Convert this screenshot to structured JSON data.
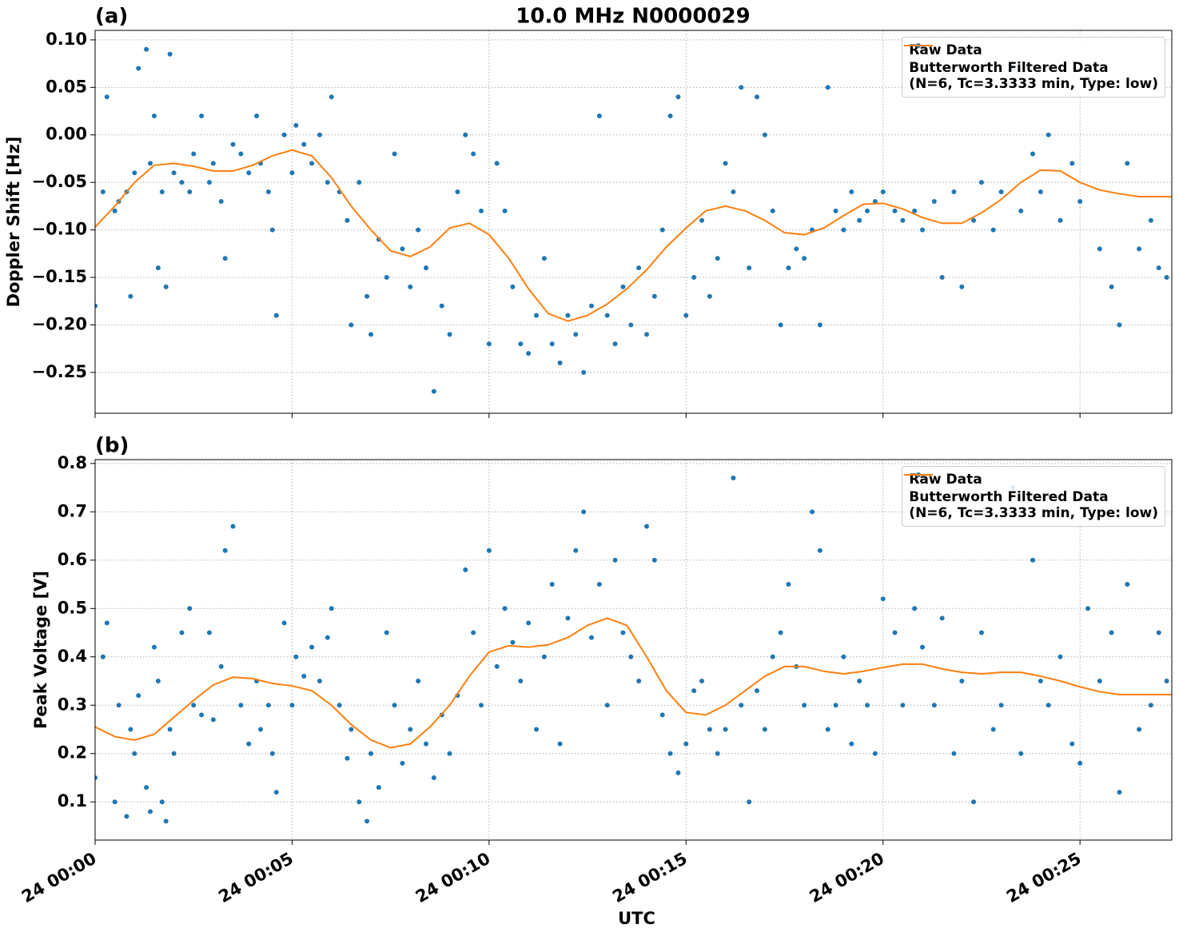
{
  "title": "10.0 MHz N0000029",
  "chart_data": [
    {
      "type": "scatter",
      "panel_label": "(a)",
      "ylabel": "Doppler Shift [Hz]",
      "xlim": [
        0,
        27.33
      ],
      "ylim": [
        -0.293,
        0.11
      ],
      "xticks": [
        0,
        5,
        10,
        15,
        20,
        25
      ],
      "show_xticklabels": false,
      "yticks": [
        {
          "value": 0.1,
          "label": "0.10"
        },
        {
          "value": 0.05,
          "label": "0.05"
        },
        {
          "value": 0,
          "label": "0.00"
        },
        {
          "value": -0.05,
          "label": "−0.05"
        },
        {
          "value": -0.1,
          "label": "−0.10"
        },
        {
          "value": -0.15,
          "label": "−0.15"
        },
        {
          "value": -0.2,
          "label": "−0.20"
        },
        {
          "value": -0.25,
          "label": "−0.25"
        }
      ],
      "grid": true,
      "legend": "upper right",
      "series": [
        {
          "name": "Raw Data",
          "type": "scatter",
          "color": "#1f77b4",
          "x": [
            0.0,
            0.2,
            0.3,
            0.5,
            0.6,
            0.8,
            0.9,
            1.0,
            1.1,
            1.3,
            1.4,
            1.5,
            1.6,
            1.7,
            1.8,
            1.9,
            2.0,
            2.2,
            2.4,
            2.5,
            2.7,
            2.9,
            3.0,
            3.2,
            3.3,
            3.5,
            3.7,
            3.9,
            4.1,
            4.2,
            4.4,
            4.5,
            4.6,
            4.8,
            5.0,
            5.1,
            5.3,
            5.5,
            5.7,
            5.9,
            6.0,
            6.2,
            6.4,
            6.5,
            6.7,
            6.9,
            7.0,
            7.2,
            7.4,
            7.6,
            7.8,
            8.0,
            8.2,
            8.4,
            8.6,
            8.8,
            9.0,
            9.2,
            9.4,
            9.6,
            9.8,
            10.0,
            10.2,
            10.4,
            10.6,
            10.8,
            11.0,
            11.2,
            11.4,
            11.6,
            11.8,
            12.0,
            12.2,
            12.4,
            12.6,
            12.8,
            13.0,
            13.2,
            13.4,
            13.6,
            13.8,
            14.0,
            14.2,
            14.4,
            14.6,
            14.8,
            15.0,
            15.2,
            15.4,
            15.6,
            15.8,
            16.0,
            16.2,
            16.4,
            16.6,
            16.8,
            17.0,
            17.2,
            17.4,
            17.6,
            17.8,
            18.0,
            18.2,
            18.4,
            18.6,
            18.8,
            19.0,
            19.2,
            19.4,
            19.6,
            19.8,
            20.0,
            20.3,
            20.5,
            20.8,
            21.0,
            21.3,
            21.5,
            21.8,
            22.0,
            22.3,
            22.5,
            22.8,
            23.0,
            23.3,
            23.5,
            23.8,
            24.0,
            24.2,
            24.5,
            24.8,
            25.0,
            25.2,
            25.5,
            25.8,
            26.0,
            26.2,
            26.5,
            26.8,
            27.0,
            27.2
          ],
          "values": [
            -0.18,
            -0.06,
            0.04,
            -0.08,
            -0.07,
            -0.06,
            -0.17,
            -0.04,
            0.07,
            0.09,
            -0.03,
            0.02,
            -0.14,
            -0.06,
            -0.16,
            0.085,
            -0.04,
            -0.05,
            -0.06,
            -0.02,
            0.02,
            -0.05,
            -0.03,
            -0.07,
            -0.13,
            -0.01,
            -0.02,
            -0.04,
            0.02,
            -0.03,
            -0.06,
            -0.1,
            -0.19,
            0.0,
            -0.04,
            0.01,
            -0.01,
            -0.03,
            0.0,
            -0.05,
            0.04,
            -0.06,
            -0.09,
            -0.2,
            -0.05,
            -0.17,
            -0.21,
            -0.11,
            -0.15,
            -0.02,
            -0.12,
            -0.16,
            -0.1,
            -0.14,
            -0.27,
            -0.18,
            -0.21,
            -0.06,
            0.0,
            -0.02,
            -0.08,
            -0.22,
            -0.03,
            -0.08,
            -0.16,
            -0.22,
            -0.23,
            -0.19,
            -0.13,
            -0.22,
            -0.24,
            -0.19,
            -0.21,
            -0.25,
            -0.18,
            0.02,
            -0.19,
            -0.22,
            -0.16,
            -0.2,
            -0.14,
            -0.21,
            -0.17,
            -0.1,
            0.02,
            0.04,
            -0.19,
            -0.15,
            -0.09,
            -0.17,
            -0.13,
            -0.03,
            -0.06,
            0.05,
            -0.14,
            0.04,
            0.0,
            -0.08,
            -0.2,
            -0.14,
            -0.12,
            -0.13,
            -0.1,
            -0.2,
            0.05,
            -0.08,
            -0.1,
            -0.06,
            -0.09,
            -0.08,
            -0.07,
            -0.06,
            -0.08,
            -0.09,
            -0.08,
            -0.1,
            -0.07,
            -0.15,
            -0.06,
            -0.16,
            -0.09,
            -0.05,
            -0.1,
            -0.06,
            0.07,
            -0.08,
            -0.02,
            -0.06,
            0.0,
            -0.09,
            -0.03,
            -0.07,
            0.06,
            -0.12,
            -0.16,
            -0.2,
            -0.03,
            -0.12,
            -0.09,
            -0.14,
            -0.15
          ]
        },
        {
          "name": "Butterworth Filtered Data\n(N=6, Tc=3.3333 min, Type: low)",
          "type": "line",
          "color": "#ff7f0e",
          "x": [
            0,
            0.5,
            1,
            1.5,
            2,
            2.5,
            3,
            3.5,
            4,
            4.5,
            5,
            5.5,
            6,
            6.5,
            7,
            7.5,
            8,
            8.5,
            9,
            9.5,
            10,
            10.5,
            11,
            11.5,
            12,
            12.5,
            13,
            13.5,
            14,
            14.5,
            15,
            15.5,
            16,
            16.5,
            17,
            17.5,
            18,
            18.5,
            19,
            19.5,
            20,
            20.5,
            21,
            21.5,
            22,
            22.5,
            23,
            23.5,
            24,
            24.5,
            25,
            25.5,
            26,
            26.5,
            27,
            27.33
          ],
          "values": [
            -0.097,
            -0.075,
            -0.05,
            -0.032,
            -0.03,
            -0.033,
            -0.038,
            -0.038,
            -0.032,
            -0.022,
            -0.016,
            -0.022,
            -0.045,
            -0.075,
            -0.1,
            -0.122,
            -0.128,
            -0.118,
            -0.098,
            -0.093,
            -0.105,
            -0.13,
            -0.162,
            -0.188,
            -0.196,
            -0.19,
            -0.178,
            -0.162,
            -0.142,
            -0.118,
            -0.098,
            -0.08,
            -0.075,
            -0.08,
            -0.09,
            -0.103,
            -0.105,
            -0.098,
            -0.085,
            -0.073,
            -0.072,
            -0.078,
            -0.087,
            -0.093,
            -0.093,
            -0.082,
            -0.068,
            -0.05,
            -0.037,
            -0.038,
            -0.05,
            -0.058,
            -0.062,
            -0.065,
            -0.065,
            -0.065
          ]
        }
      ]
    },
    {
      "type": "scatter",
      "panel_label": "(b)",
      "ylabel": "Peak Voltage [V]",
      "xlabel": "UTC",
      "xlim": [
        0,
        27.33
      ],
      "ylim": [
        0.021,
        0.808
      ],
      "xticks": [
        {
          "value": 0,
          "label": "24 00:00"
        },
        {
          "value": 5,
          "label": "24 00:05"
        },
        {
          "value": 10,
          "label": "24 00:10"
        },
        {
          "value": 15,
          "label": "24 00:15"
        },
        {
          "value": 20,
          "label": "24 00:20"
        },
        {
          "value": 25,
          "label": "24 00:25"
        }
      ],
      "yticks": [
        0.1,
        0.2,
        0.3,
        0.4,
        0.5,
        0.6,
        0.7,
        0.8
      ],
      "grid": true,
      "legend": "upper right",
      "series": [
        {
          "name": "Raw Data",
          "type": "scatter",
          "color": "#1f77b4",
          "x": [
            0.0,
            0.2,
            0.3,
            0.5,
            0.6,
            0.8,
            0.9,
            1.0,
            1.1,
            1.3,
            1.4,
            1.5,
            1.6,
            1.7,
            1.8,
            1.9,
            2.0,
            2.2,
            2.4,
            2.5,
            2.7,
            2.9,
            3.0,
            3.2,
            3.3,
            3.5,
            3.7,
            3.9,
            4.1,
            4.2,
            4.4,
            4.5,
            4.6,
            4.8,
            5.0,
            5.1,
            5.3,
            5.5,
            5.7,
            5.9,
            6.0,
            6.2,
            6.4,
            6.5,
            6.7,
            6.9,
            7.0,
            7.2,
            7.4,
            7.6,
            7.8,
            8.0,
            8.2,
            8.4,
            8.6,
            8.8,
            9.0,
            9.2,
            9.4,
            9.6,
            9.8,
            10.0,
            10.2,
            10.4,
            10.6,
            10.8,
            11.0,
            11.2,
            11.4,
            11.6,
            11.8,
            12.0,
            12.2,
            12.4,
            12.6,
            12.8,
            13.0,
            13.2,
            13.4,
            13.6,
            13.8,
            14.0,
            14.2,
            14.4,
            14.6,
            14.8,
            15.0,
            15.2,
            15.4,
            15.6,
            15.8,
            16.0,
            16.2,
            16.4,
            16.6,
            16.8,
            17.0,
            17.2,
            17.4,
            17.6,
            17.8,
            18.0,
            18.2,
            18.4,
            18.6,
            18.8,
            19.0,
            19.2,
            19.4,
            19.6,
            19.8,
            20.0,
            20.3,
            20.5,
            20.8,
            21.0,
            21.3,
            21.5,
            21.8,
            22.0,
            22.3,
            22.5,
            22.8,
            23.0,
            23.3,
            23.5,
            23.8,
            24.0,
            24.2,
            24.5,
            24.8,
            25.0,
            25.2,
            25.5,
            25.8,
            26.0,
            26.2,
            26.5,
            26.8,
            27.0,
            27.2
          ],
          "values": [
            0.15,
            0.4,
            0.47,
            0.1,
            0.3,
            0.07,
            0.25,
            0.2,
            0.32,
            0.13,
            0.08,
            0.42,
            0.35,
            0.1,
            0.06,
            0.25,
            0.2,
            0.45,
            0.5,
            0.3,
            0.28,
            0.45,
            0.27,
            0.38,
            0.62,
            0.67,
            0.3,
            0.22,
            0.35,
            0.25,
            0.3,
            0.2,
            0.12,
            0.47,
            0.3,
            0.4,
            0.36,
            0.42,
            0.35,
            0.44,
            0.5,
            0.3,
            0.19,
            0.25,
            0.1,
            0.06,
            0.2,
            0.13,
            0.45,
            0.3,
            0.18,
            0.25,
            0.35,
            0.22,
            0.15,
            0.28,
            0.2,
            0.32,
            0.58,
            0.45,
            0.3,
            0.62,
            0.38,
            0.5,
            0.43,
            0.35,
            0.47,
            0.25,
            0.4,
            0.55,
            0.22,
            0.48,
            0.62,
            0.7,
            0.44,
            0.55,
            0.3,
            0.6,
            0.45,
            0.4,
            0.35,
            0.67,
            0.6,
            0.28,
            0.2,
            0.16,
            0.22,
            0.33,
            0.35,
            0.25,
            0.2,
            0.25,
            0.77,
            0.3,
            0.1,
            0.33,
            0.25,
            0.4,
            0.45,
            0.55,
            0.38,
            0.3,
            0.7,
            0.62,
            0.25,
            0.3,
            0.4,
            0.22,
            0.35,
            0.3,
            0.2,
            0.52,
            0.45,
            0.3,
            0.5,
            0.42,
            0.3,
            0.48,
            0.2,
            0.35,
            0.1,
            0.45,
            0.25,
            0.3,
            0.75,
            0.2,
            0.6,
            0.35,
            0.3,
            0.4,
            0.22,
            0.18,
            0.5,
            0.35,
            0.45,
            0.12,
            0.55,
            0.25,
            0.3,
            0.45,
            0.35
          ]
        },
        {
          "name": "Butterworth Filtered Data\n(N=6, Tc=3.3333 min, Type: low)",
          "type": "line",
          "color": "#ff7f0e",
          "x": [
            0,
            0.5,
            1,
            1.5,
            2,
            2.5,
            3,
            3.5,
            4,
            4.5,
            5,
            5.5,
            6,
            6.5,
            7,
            7.5,
            8,
            8.5,
            9,
            9.5,
            10,
            10.5,
            11,
            11.5,
            12,
            12.5,
            13,
            13.5,
            14,
            14.5,
            15,
            15.5,
            16,
            16.5,
            17,
            17.5,
            18,
            18.5,
            19,
            19.5,
            20,
            20.5,
            21,
            21.5,
            22,
            22.5,
            23,
            23.5,
            24,
            24.5,
            25,
            25.5,
            26,
            26.5,
            27,
            27.33
          ],
          "values": [
            0.255,
            0.235,
            0.228,
            0.24,
            0.275,
            0.31,
            0.342,
            0.358,
            0.355,
            0.345,
            0.34,
            0.33,
            0.3,
            0.26,
            0.228,
            0.212,
            0.22,
            0.255,
            0.3,
            0.36,
            0.41,
            0.423,
            0.42,
            0.425,
            0.44,
            0.465,
            0.48,
            0.465,
            0.4,
            0.33,
            0.285,
            0.28,
            0.3,
            0.33,
            0.36,
            0.38,
            0.38,
            0.37,
            0.365,
            0.37,
            0.378,
            0.385,
            0.385,
            0.375,
            0.368,
            0.365,
            0.368,
            0.368,
            0.36,
            0.35,
            0.338,
            0.328,
            0.322,
            0.322,
            0.322,
            0.322
          ]
        }
      ]
    }
  ]
}
